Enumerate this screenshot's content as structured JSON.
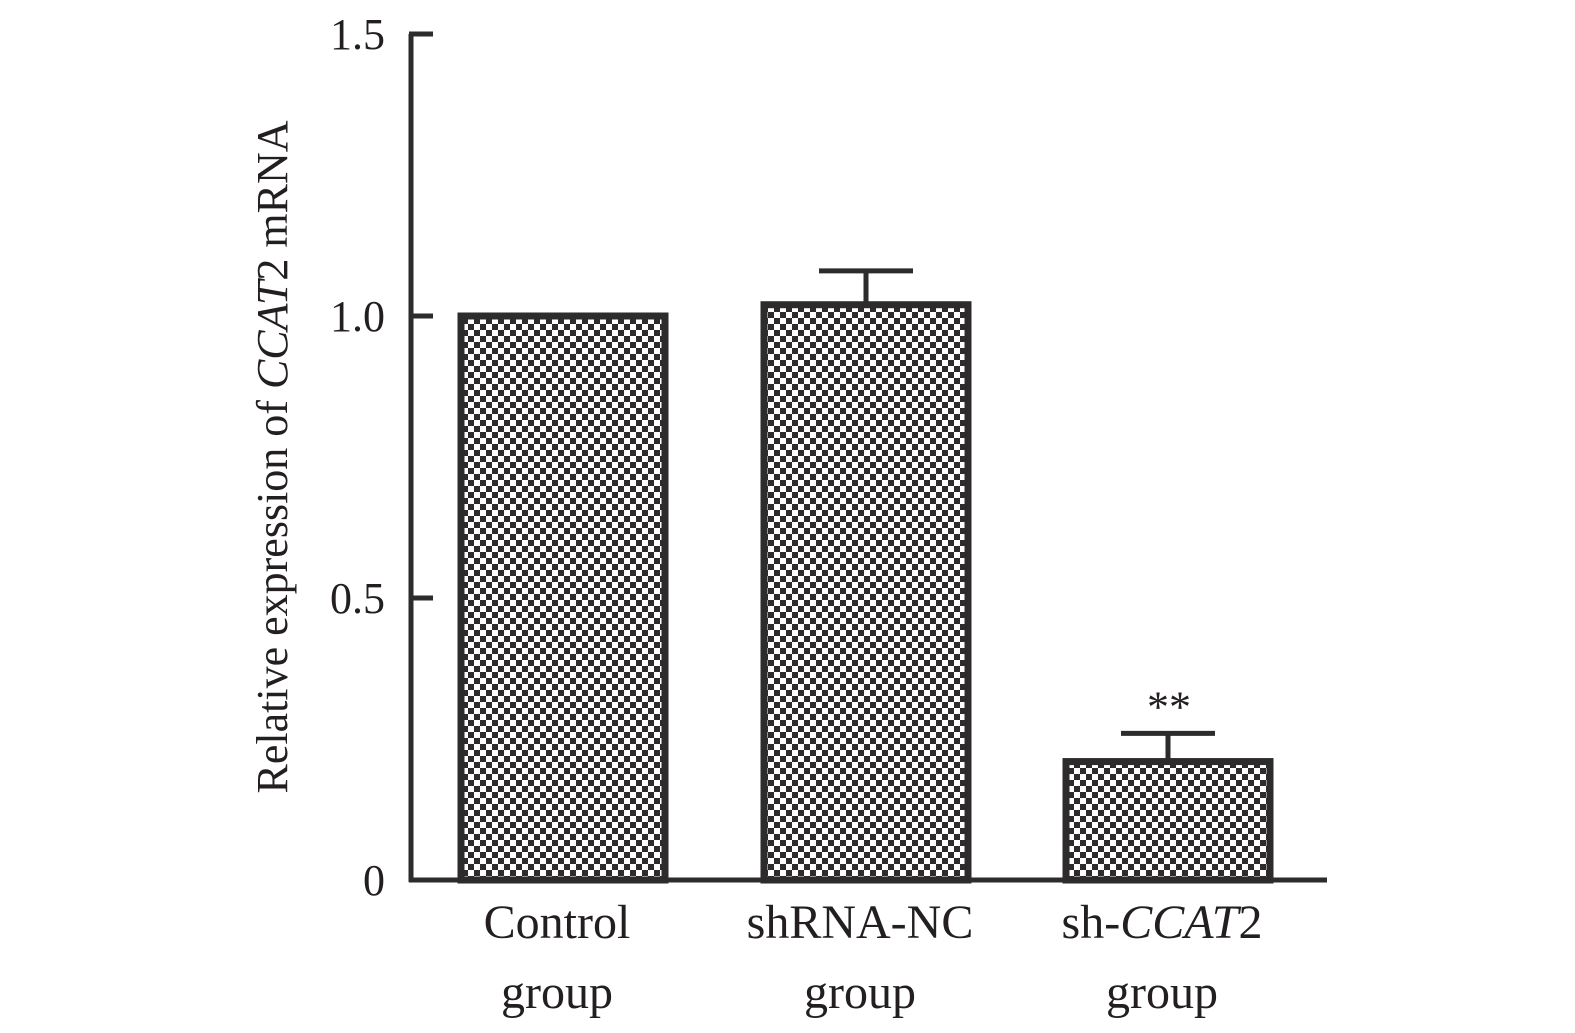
{
  "chart_data": {
    "type": "bar",
    "title": "",
    "xlabel": "",
    "ylabel": "Relative expression of CCAT2 mRNA",
    "ylabel_parts": [
      {
        "text": "Relative expression of ",
        "italic": false
      },
      {
        "text": "CCAT",
        "italic": true
      },
      {
        "text": "2 mRNA",
        "italic": false
      }
    ],
    "ylim": [
      0,
      1.5
    ],
    "yticks": [
      0,
      0.5,
      1.0,
      1.5
    ],
    "ytick_labels": [
      "0",
      "0.5",
      "1.0",
      "1.5"
    ],
    "categories": [
      "Control group",
      "shRNA-NC group",
      "sh-CCAT2 group"
    ],
    "category_lines": [
      [
        [
          {
            "text": "Control",
            "italic": false
          }
        ],
        [
          {
            "text": "group",
            "italic": false
          }
        ]
      ],
      [
        [
          {
            "text": "shRNA-NC",
            "italic": false
          }
        ],
        [
          {
            "text": "group",
            "italic": false
          }
        ]
      ],
      [
        [
          {
            "text": "sh-",
            "italic": false
          },
          {
            "text": "CCAT",
            "italic": true
          },
          {
            "text": "2",
            "italic": false
          }
        ],
        [
          {
            "text": "group",
            "italic": false
          }
        ]
      ]
    ],
    "values": [
      1.0,
      1.02,
      0.21
    ],
    "errors": [
      0,
      0.06,
      0.05
    ],
    "annotations": [
      "",
      "",
      "**"
    ],
    "grid": false,
    "legend": null,
    "bar_pattern": "checkerboard",
    "colors": {
      "stroke": "#2e2b2c",
      "pattern_dark": "#2e2b2c",
      "pattern_light": "#ffffff",
      "text": "#231f20"
    }
  }
}
